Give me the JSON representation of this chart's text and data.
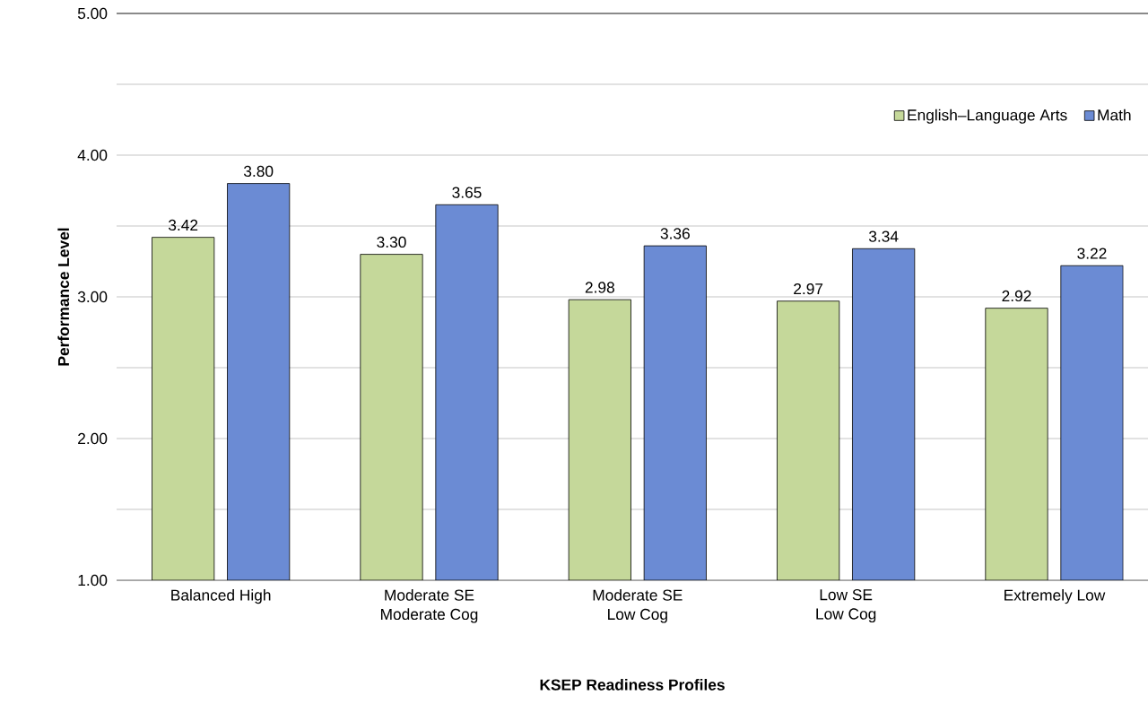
{
  "chart_data": {
    "type": "bar",
    "xlabel": "KSEP Readiness Profiles",
    "ylabel": "Performance Level",
    "categories": [
      "Balanced High",
      "Moderate SE\nModerate Cog",
      "Moderate SE\nLow Cog",
      "Low SE\nLow Cog",
      "Extremely Low"
    ],
    "series": [
      {
        "name": "English–Language Arts",
        "color": "#c5d89a",
        "values": [
          3.42,
          3.3,
          2.98,
          2.97,
          2.92
        ],
        "value_labels": [
          "3.42",
          "3.30",
          "2.98",
          "2.97",
          "2.92"
        ]
      },
      {
        "name": "Math",
        "color": "#6b8bd4",
        "values": [
          3.8,
          3.65,
          3.36,
          3.34,
          3.22
        ],
        "value_labels": [
          "3.80",
          "3.65",
          "3.36",
          "3.34",
          "3.22"
        ]
      }
    ],
    "ylim": [
      1,
      5
    ],
    "yticks": [
      {
        "value": 1,
        "label": "1.00"
      },
      {
        "value": 1.5,
        "label": null
      },
      {
        "value": 2,
        "label": "2.00"
      },
      {
        "value": 2.5,
        "label": null
      },
      {
        "value": 3,
        "label": "3.00"
      },
      {
        "value": 3.5,
        "label": null
      },
      {
        "value": 4,
        "label": "4.00"
      },
      {
        "value": 4.5,
        "label": null
      },
      {
        "value": 5,
        "label": "5.00"
      }
    ],
    "grid": "y",
    "legend": "top right"
  }
}
